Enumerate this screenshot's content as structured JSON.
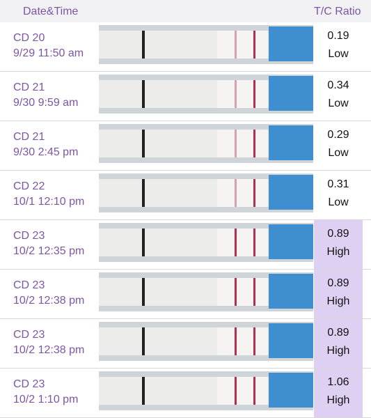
{
  "header": {
    "date_time": "Date&Time",
    "ratio": "T/C Ratio"
  },
  "rows": [
    {
      "day": "CD 20",
      "time": "9/29 11:50 am",
      "ratio": "0.19",
      "level": "Low",
      "highlight": false
    },
    {
      "day": "CD 21",
      "time": "9/30 9:59 am",
      "ratio": "0.34",
      "level": "Low",
      "highlight": false
    },
    {
      "day": "CD 21",
      "time": "9/30 2:45 pm",
      "ratio": "0.29",
      "level": "Low",
      "highlight": false
    },
    {
      "day": "CD 22",
      "time": "10/1 12:10 pm",
      "ratio": "0.31",
      "level": "Low",
      "highlight": false
    },
    {
      "day": "CD 23",
      "time": "10/2 12:35 pm",
      "ratio": "0.89",
      "level": "High",
      "highlight": true
    },
    {
      "day": "CD 23",
      "time": "10/2 12:38 pm",
      "ratio": "0.89",
      "level": "High",
      "highlight": true
    },
    {
      "day": "CD 23",
      "time": "10/2 12:38 pm",
      "ratio": "0.89",
      "level": "High",
      "highlight": true
    },
    {
      "day": "CD 23",
      "time": "10/2 1:10 pm",
      "ratio": "1.06",
      "level": "High",
      "highlight": true
    }
  ]
}
